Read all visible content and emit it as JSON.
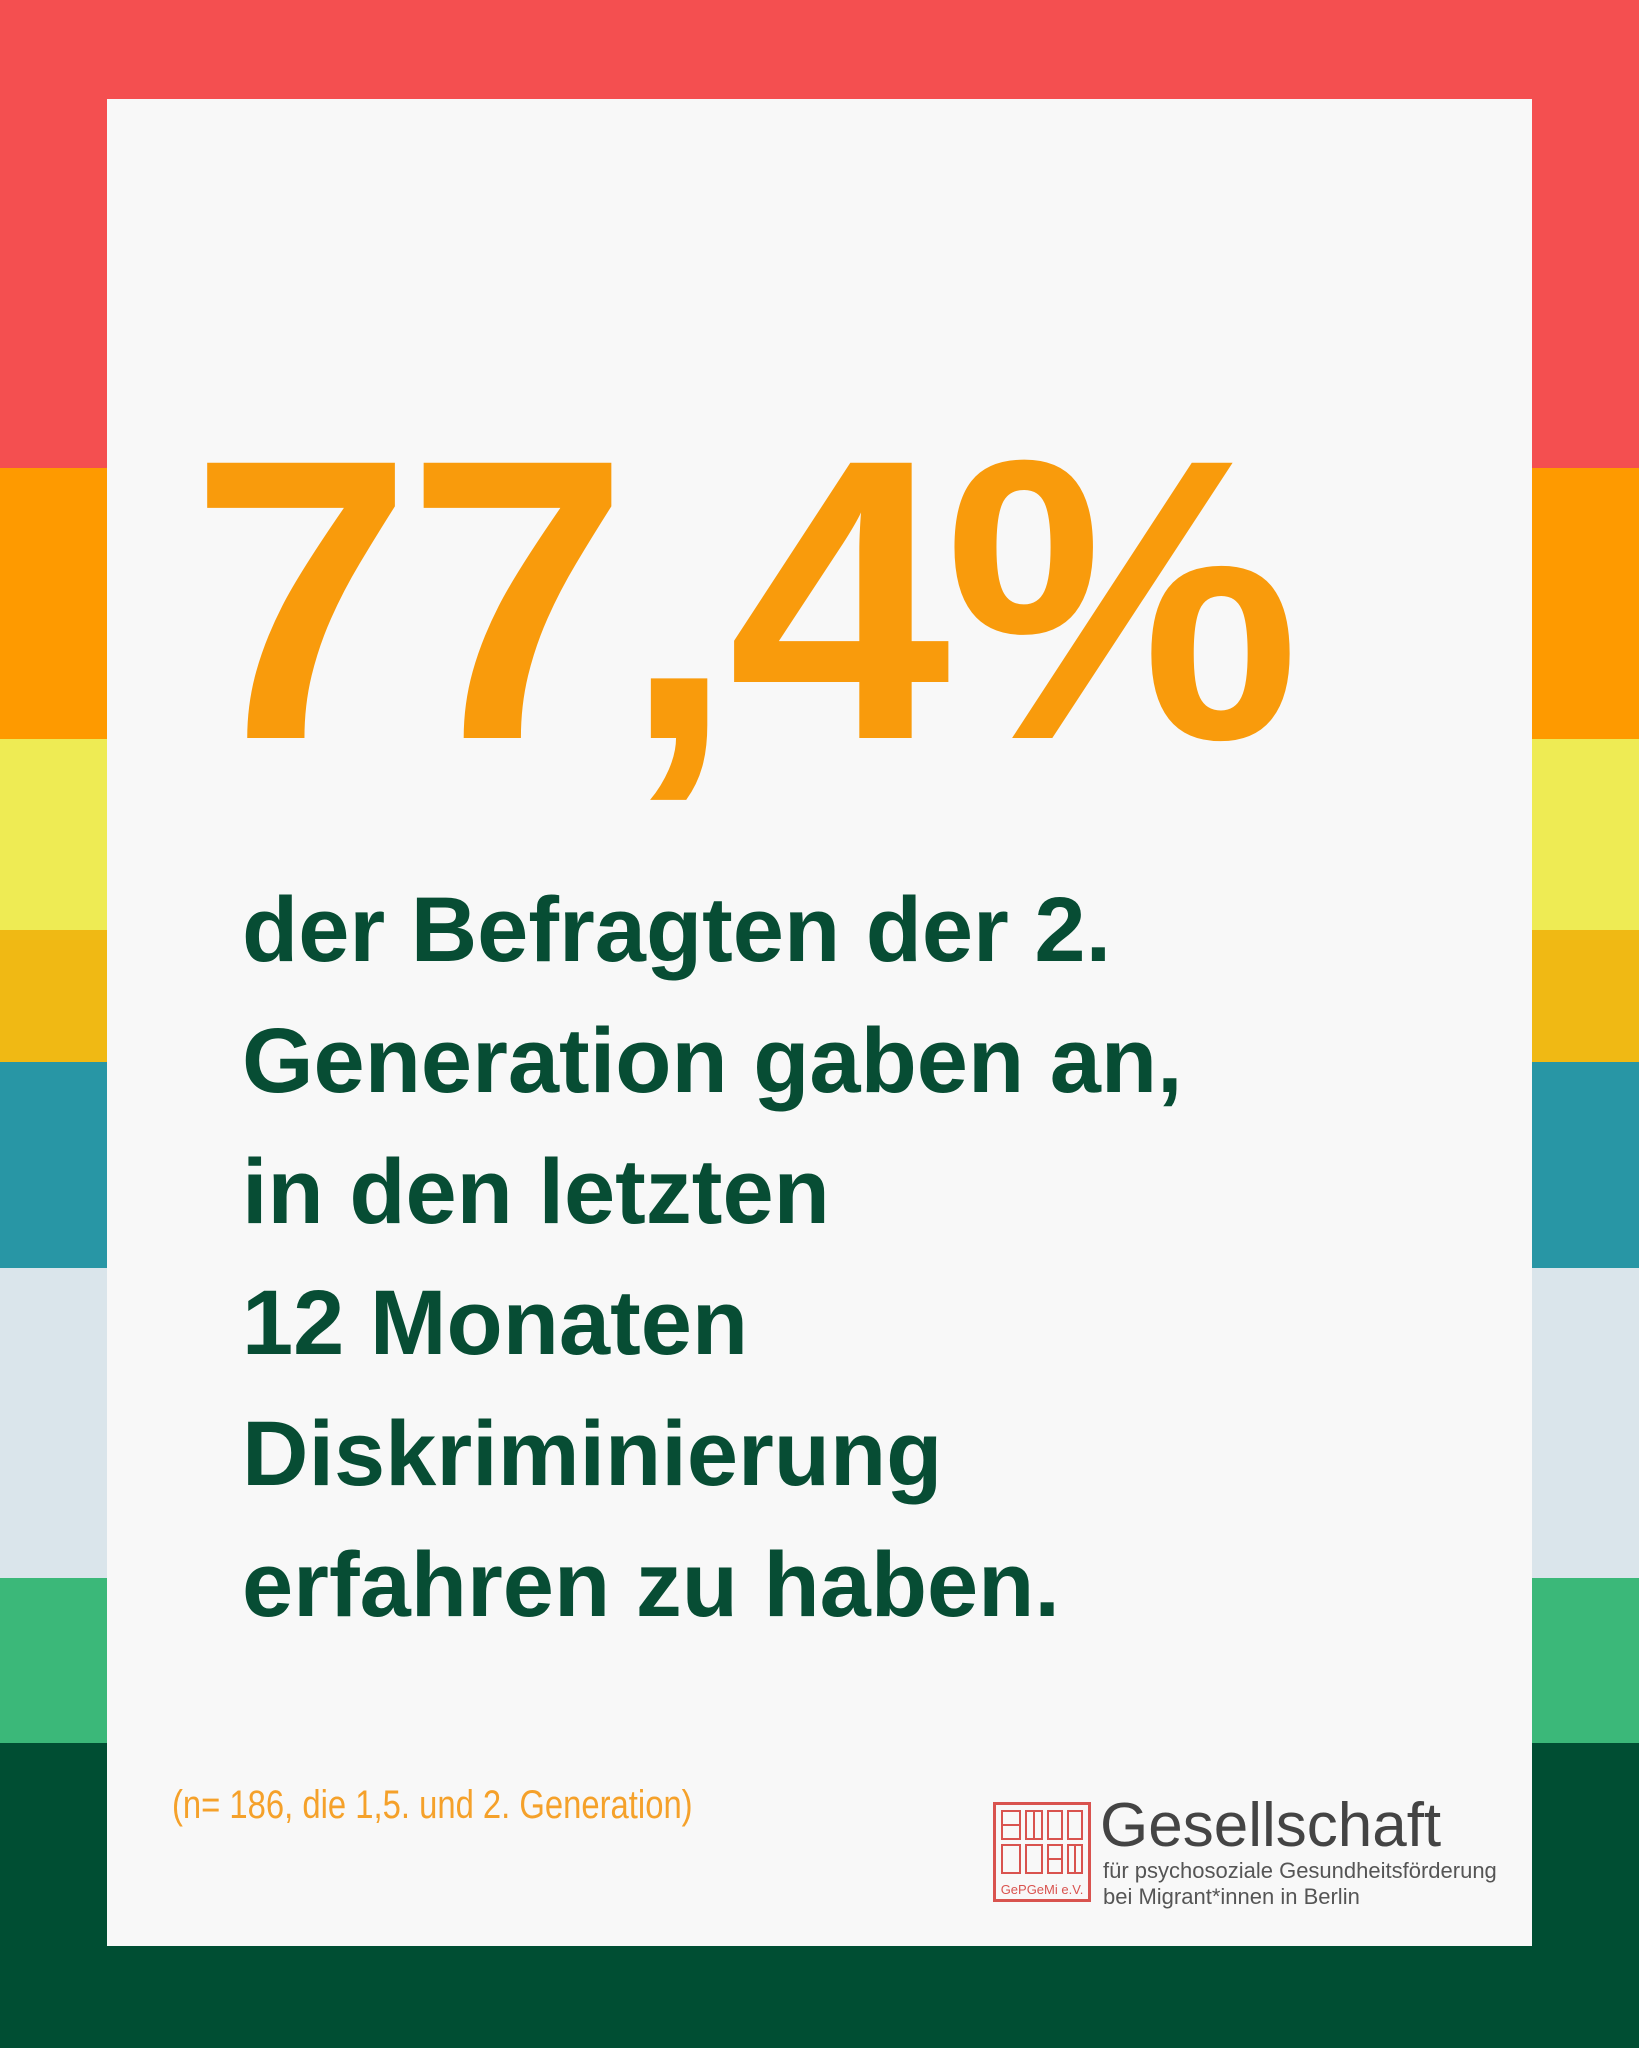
{
  "headline": "77,4%",
  "body": {
    "lines": [
      "der Befragten der 2.",
      "Generation gaben an,",
      "in den letzten",
      "12 Monaten",
      "Diskriminierung",
      "erfahren zu haben."
    ]
  },
  "footnote": "(n= 186, die 1,5. und 2. Generation)",
  "logo": {
    "seal": "GePGeMi e.V.",
    "title": "Gesellschaft",
    "subtitle": [
      "für psychosoziale Gesundheitsförderung",
      "bei Migrant*innen in Berlin"
    ]
  }
}
